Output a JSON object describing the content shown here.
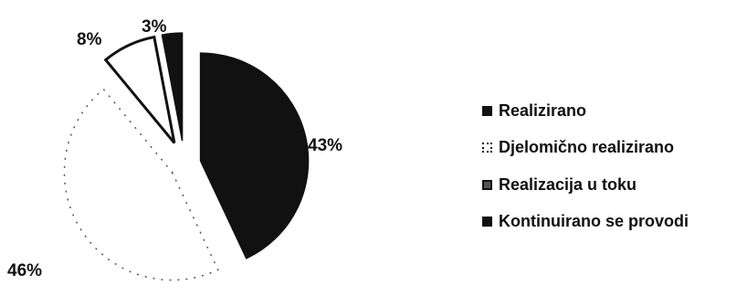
{
  "chart_data": {
    "type": "pie",
    "categories": [
      "Realizirano",
      "Djelomično realizirano",
      "Realizacija u toku",
      "Kontinuirano se provodi"
    ],
    "values": [
      43,
      46,
      8,
      3
    ],
    "value_labels": [
      "43%",
      "46%",
      "8%",
      "3%"
    ],
    "colors": [
      "#111111",
      "#ffffff",
      "#ffffff",
      "#111111"
    ],
    "exploded": true,
    "legend_position": "right",
    "title": "",
    "series": [
      {
        "name": "",
        "slices": [
          {
            "label": "Realizirano",
            "value": 43,
            "value_label": "43%",
            "color": "#111111"
          },
          {
            "label": "Djelomično realizirano",
            "value": 46,
            "value_label": "46%",
            "color": "#ffffff"
          },
          {
            "label": "Realizacija u toku",
            "value": 8,
            "value_label": "8%",
            "color": "#ffffff"
          },
          {
            "label": "Kontinuirano se provodi",
            "value": 3,
            "value_label": "3%",
            "color": "#111111"
          }
        ]
      }
    ]
  },
  "legend": {
    "items": [
      {
        "label": "Realizirano",
        "swatch": "solid-black"
      },
      {
        "label": "Djelomično realizirano",
        "swatch": "outlined-white"
      },
      {
        "label": "Realizacija u toku",
        "swatch": "outlined-white"
      },
      {
        "label": "Kontinuirano se provodi",
        "swatch": "solid-black"
      }
    ]
  }
}
